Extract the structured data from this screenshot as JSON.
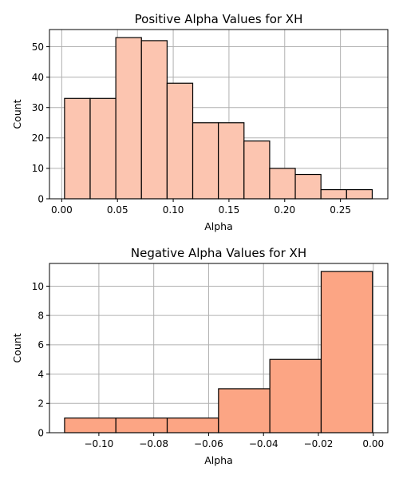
{
  "chart_data": [
    {
      "type": "bar",
      "title": "Positive Alpha Values for XH",
      "xlabel": "Alpha",
      "ylabel": "Count",
      "bin_edges": [
        0.0025,
        0.0255,
        0.0485,
        0.0715,
        0.0945,
        0.1175,
        0.1405,
        0.1635,
        0.1865,
        0.2095,
        0.2325,
        0.2555,
        0.2785
      ],
      "values": [
        33,
        33,
        53,
        52,
        38,
        25,
        25,
        19,
        10,
        8,
        3,
        3
      ],
      "xlim": [
        -0.011,
        0.2925
      ],
      "ylim": [
        0,
        55.65
      ],
      "xticks": [
        0.0,
        0.05,
        0.1,
        0.15,
        0.2,
        0.25
      ],
      "xtick_labels": [
        "0.00",
        "0.05",
        "0.10",
        "0.15",
        "0.20",
        "0.25"
      ],
      "yticks": [
        0,
        10,
        20,
        30,
        40,
        50
      ],
      "ytick_labels": [
        "0",
        "10",
        "20",
        "30",
        "40",
        "50"
      ],
      "grid": true,
      "bar_color": "#fcc5b0"
    },
    {
      "type": "bar",
      "title": "Negative Alpha Values for XH",
      "xlabel": "Alpha",
      "ylabel": "Count",
      "bin_edges": [
        -0.1125,
        -0.0938,
        -0.0751,
        -0.0564,
        -0.0377,
        -0.019,
        -0.0003
      ],
      "values": [
        1,
        1,
        1,
        3,
        5,
        11
      ],
      "xlim": [
        -0.118,
        0.0053
      ],
      "ylim": [
        0,
        11.55
      ],
      "xticks": [
        -0.1,
        -0.08,
        -0.06,
        -0.04,
        -0.02,
        0.0
      ],
      "xtick_labels": [
        "−0.10",
        "−0.08",
        "−0.06",
        "−0.04",
        "−0.02",
        "0.00"
      ],
      "yticks": [
        0,
        2,
        4,
        6,
        8,
        10
      ],
      "ytick_labels": [
        "0",
        "2",
        "4",
        "6",
        "8",
        "10"
      ],
      "grid": true,
      "bar_color": "#fca584"
    }
  ]
}
